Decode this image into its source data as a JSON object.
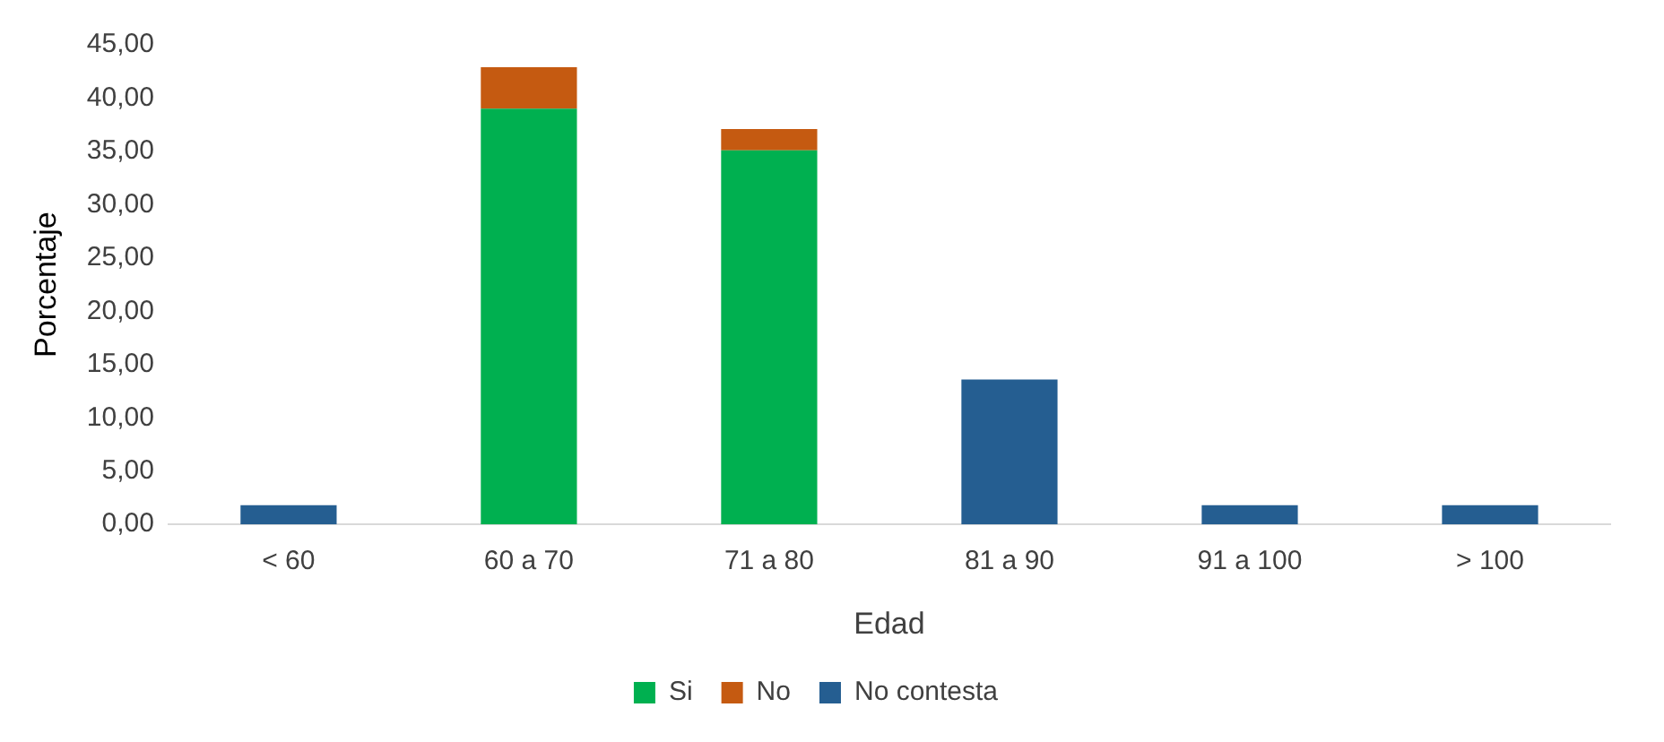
{
  "chart_data": {
    "type": "bar",
    "stacked": true,
    "xlabel": "Edad",
    "ylabel": "Porcentaje",
    "categories": [
      "< 60",
      "60 a 70",
      "71 a 80",
      "81 a 90",
      "91 a 100",
      "> 100"
    ],
    "series": [
      {
        "name": "Si",
        "color": "#00b050",
        "values": [
          null,
          39.0,
          35.1,
          null,
          null,
          null
        ]
      },
      {
        "name": "No",
        "color": "#c55a11",
        "values": [
          null,
          3.9,
          2.0,
          null,
          null,
          null
        ]
      },
      {
        "name": "No contesta",
        "color": "#255e91",
        "values": [
          1.8,
          null,
          null,
          13.6,
          1.8,
          1.8
        ]
      }
    ],
    "ylim": [
      0,
      45
    ],
    "yticks": [
      {
        "value": 0,
        "label": "0,00"
      },
      {
        "value": 5,
        "label": "5,00"
      },
      {
        "value": 10,
        "label": "10,00"
      },
      {
        "value": 15,
        "label": "15,00"
      },
      {
        "value": 20,
        "label": "20,00"
      },
      {
        "value": 25,
        "label": "25,00"
      },
      {
        "value": 30,
        "label": "30,00"
      },
      {
        "value": 35,
        "label": "35,00"
      },
      {
        "value": 40,
        "label": "40,00"
      },
      {
        "value": 45,
        "label": "45,00"
      }
    ],
    "grid": false,
    "legend": "bottom"
  }
}
